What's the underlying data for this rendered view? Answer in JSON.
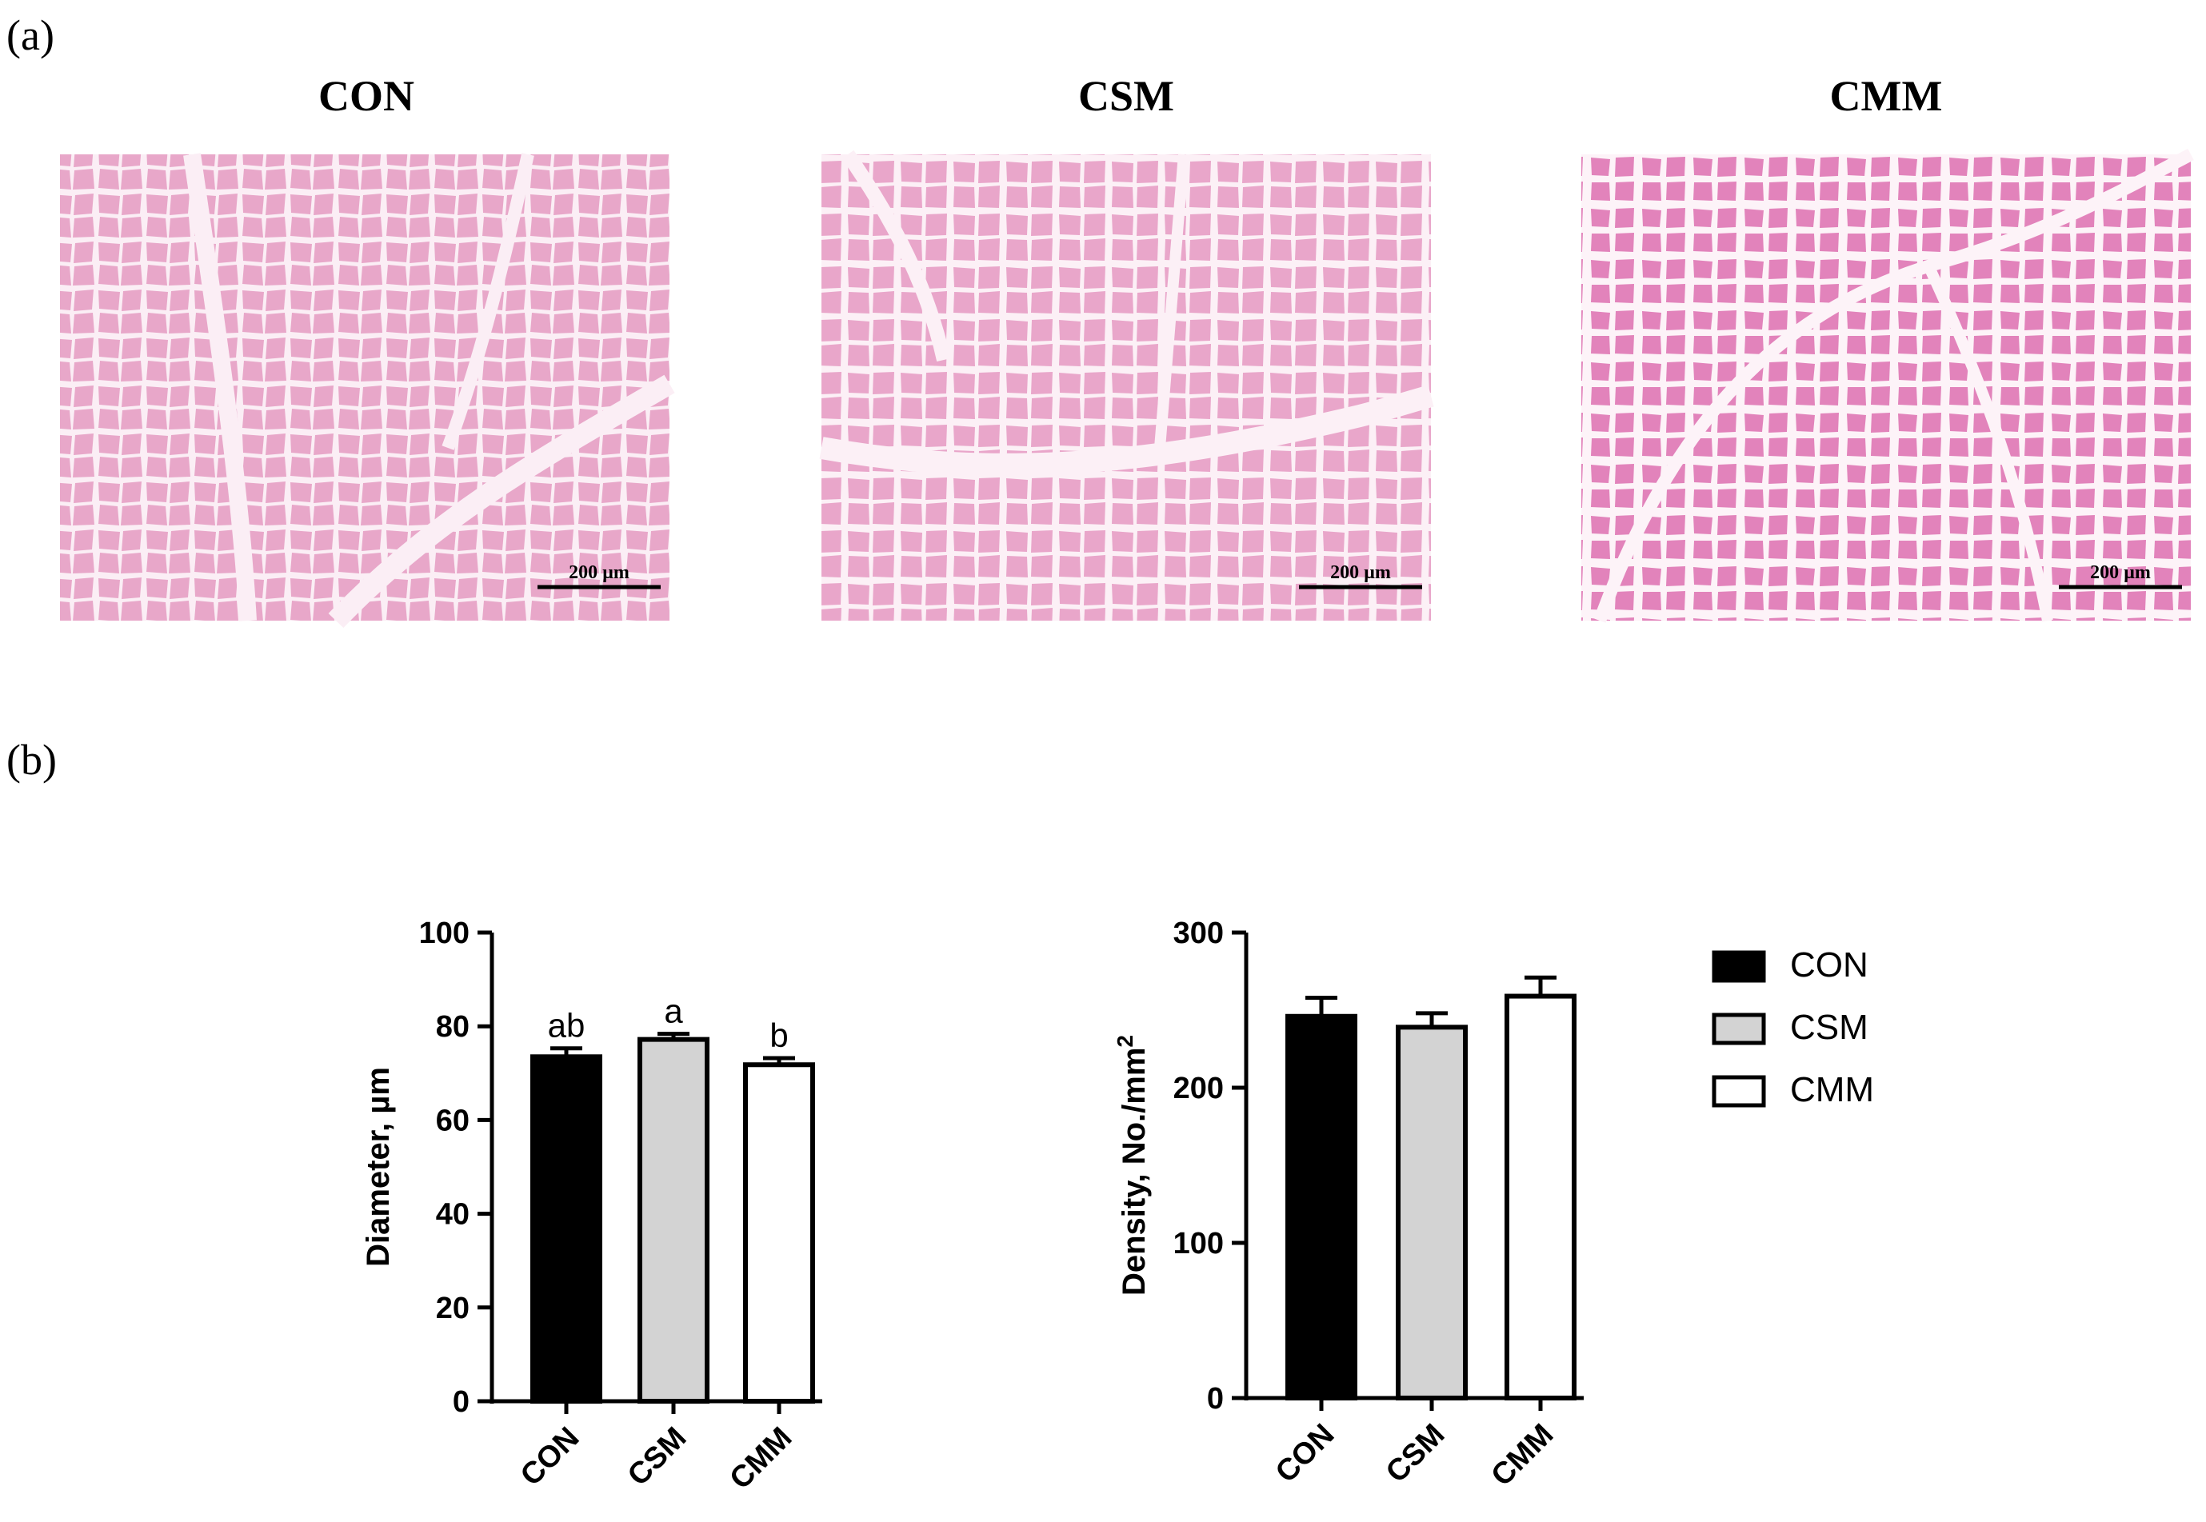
{
  "panel_a": {
    "label": "(a)",
    "titles": [
      "CON",
      "CSM",
      "CMM"
    ],
    "scale_bar_label": "200 µm",
    "tissue_colors": {
      "CON": {
        "fiber": "#e8a7c9",
        "gap": "#fbeef5"
      },
      "CSM": {
        "fiber": "#e9a6ca",
        "gap": "#fcf0f6"
      },
      "CMM": {
        "fiber": "#e283bb",
        "gap": "#fdf3f8"
      }
    }
  },
  "panel_b": {
    "label": "(b)"
  },
  "legend": [
    {
      "name": "CON",
      "fill": "#000000"
    },
    {
      "name": "CSM",
      "fill": "#d3d3d3"
    },
    {
      "name": "CMM",
      "fill": "#ffffff"
    }
  ],
  "chart_data": [
    {
      "type": "bar",
      "categories": [
        "CON",
        "CSM",
        "CMM"
      ],
      "values": [
        73.5,
        77.2,
        71.8
      ],
      "errors": [
        1.8,
        1.2,
        1.4
      ],
      "annotations": [
        "ab",
        "a",
        "b"
      ],
      "ylabel": "Diameter, µm",
      "ylim": [
        0,
        100
      ],
      "yticks": [
        0,
        20,
        40,
        60,
        80,
        100
      ],
      "fills": [
        "#000000",
        "#d3d3d3",
        "#ffffff"
      ]
    },
    {
      "type": "bar",
      "categories": [
        "CON",
        "CSM",
        "CMM"
      ],
      "values": [
        246,
        239,
        259
      ],
      "errors": [
        12,
        9,
        12
      ],
      "annotations": [],
      "ylabel": "Density, No./mm",
      "ylabel_sup": "2",
      "ylim": [
        0,
        300
      ],
      "yticks": [
        0,
        100,
        200,
        300
      ],
      "fills": [
        "#000000",
        "#d3d3d3",
        "#ffffff"
      ]
    }
  ]
}
